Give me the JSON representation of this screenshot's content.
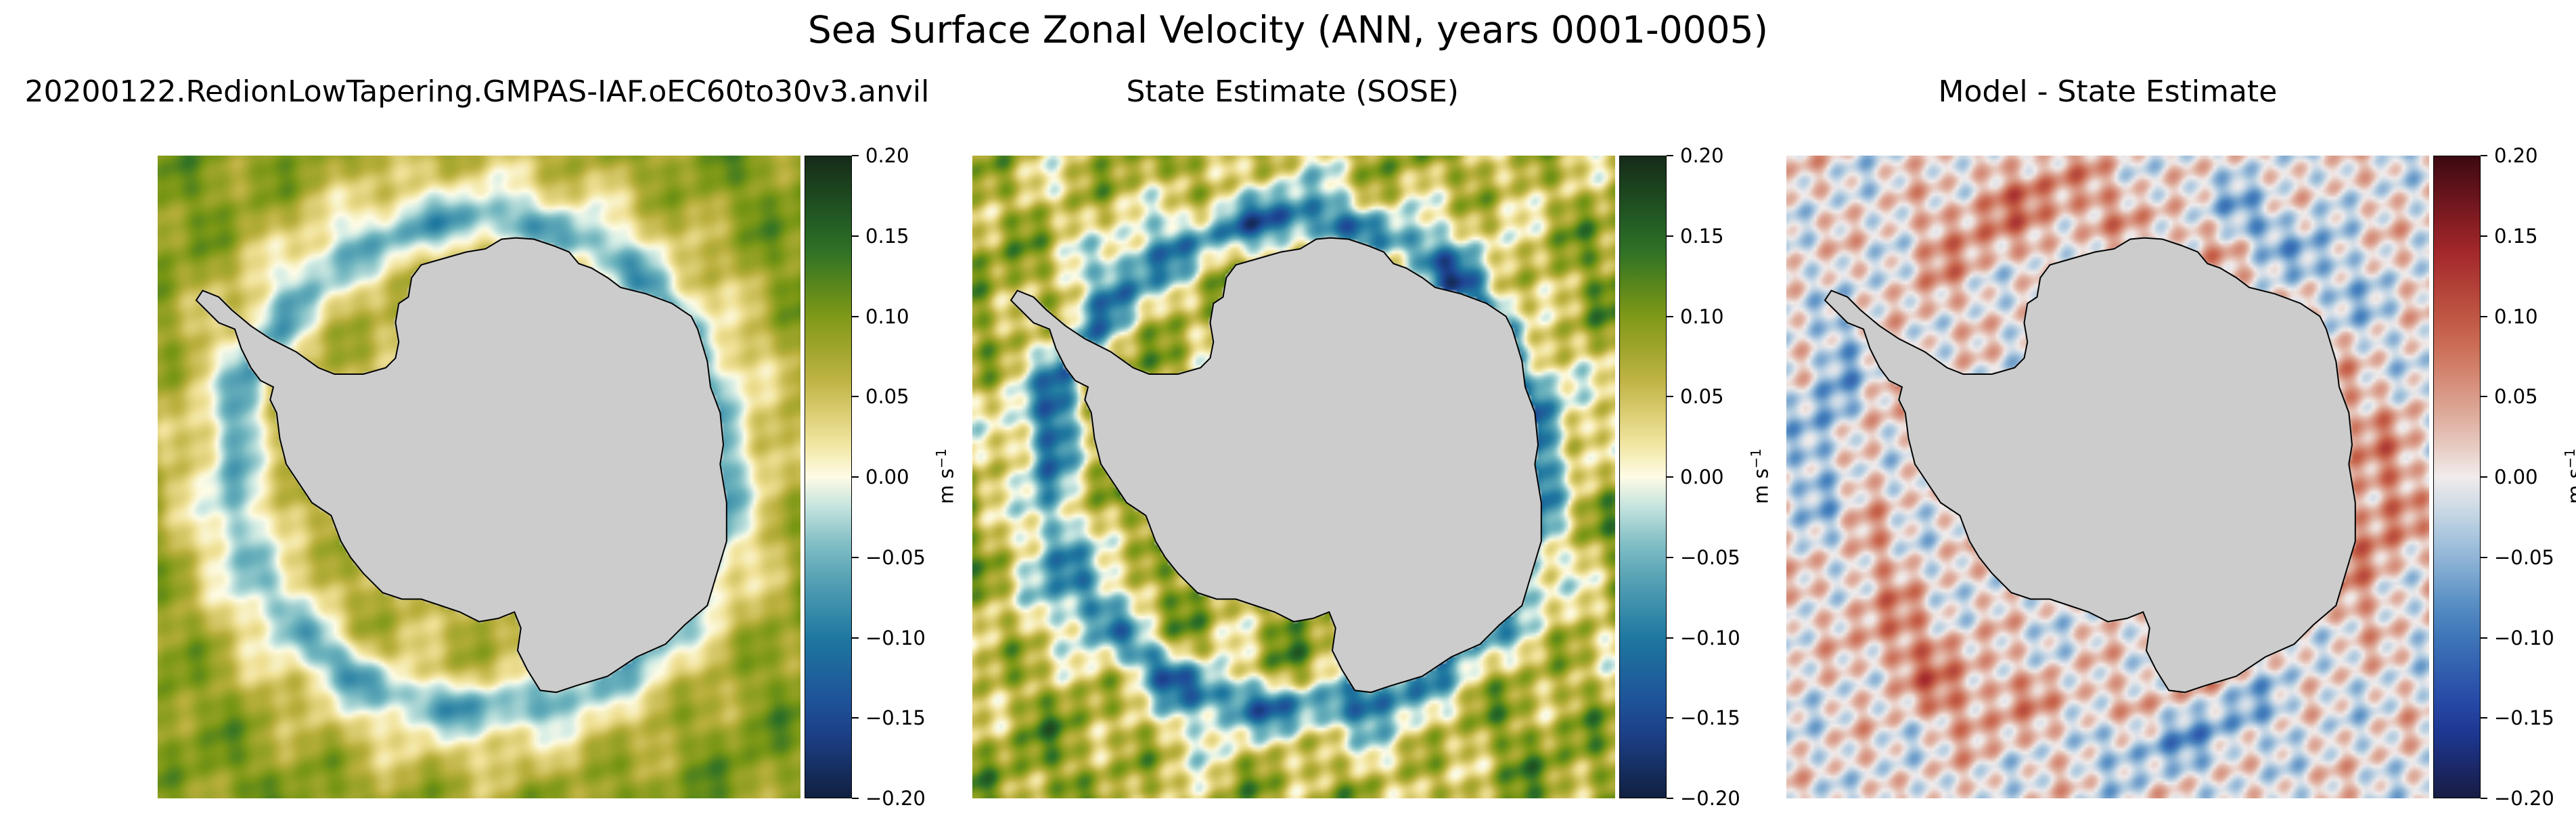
{
  "figure": {
    "title": "Sea Surface Zonal Velocity (ANN, years 0001-0005)"
  },
  "chart_data": [
    {
      "type": "heatmap",
      "title": "20200122.RedionLowTapering.GMPAS-IAF.oEC60to30v3.anvil",
      "colormap": "delta",
      "colorbar": {
        "range": [
          -0.2,
          0.2
        ],
        "ticks": [
          "0.20",
          "0.15",
          "0.10",
          "0.05",
          "0.00",
          "−0.05",
          "−0.10",
          "−0.15",
          "−0.20"
        ],
        "unit_base": "m s",
        "unit_exp": "−1"
      }
    },
    {
      "type": "heatmap",
      "title": "State Estimate (SOSE)",
      "colormap": "delta",
      "colorbar": {
        "range": [
          -0.2,
          0.2
        ],
        "ticks": [
          "0.20",
          "0.15",
          "0.10",
          "0.05",
          "0.00",
          "−0.05",
          "−0.10",
          "−0.15",
          "−0.20"
        ],
        "unit_base": "m s",
        "unit_exp": "−1"
      }
    },
    {
      "type": "heatmap",
      "title": "Model - State Estimate",
      "colormap": "balance",
      "colorbar": {
        "range": [
          -0.2,
          0.2
        ],
        "ticks": [
          "0.20",
          "0.15",
          "0.10",
          "0.05",
          "0.00",
          "−0.05",
          "−0.10",
          "−0.15",
          "−0.20"
        ],
        "unit_base": "m s",
        "unit_exp": "−1"
      }
    }
  ],
  "colors": {
    "land": "#cccccc",
    "coastline": "#000000"
  }
}
